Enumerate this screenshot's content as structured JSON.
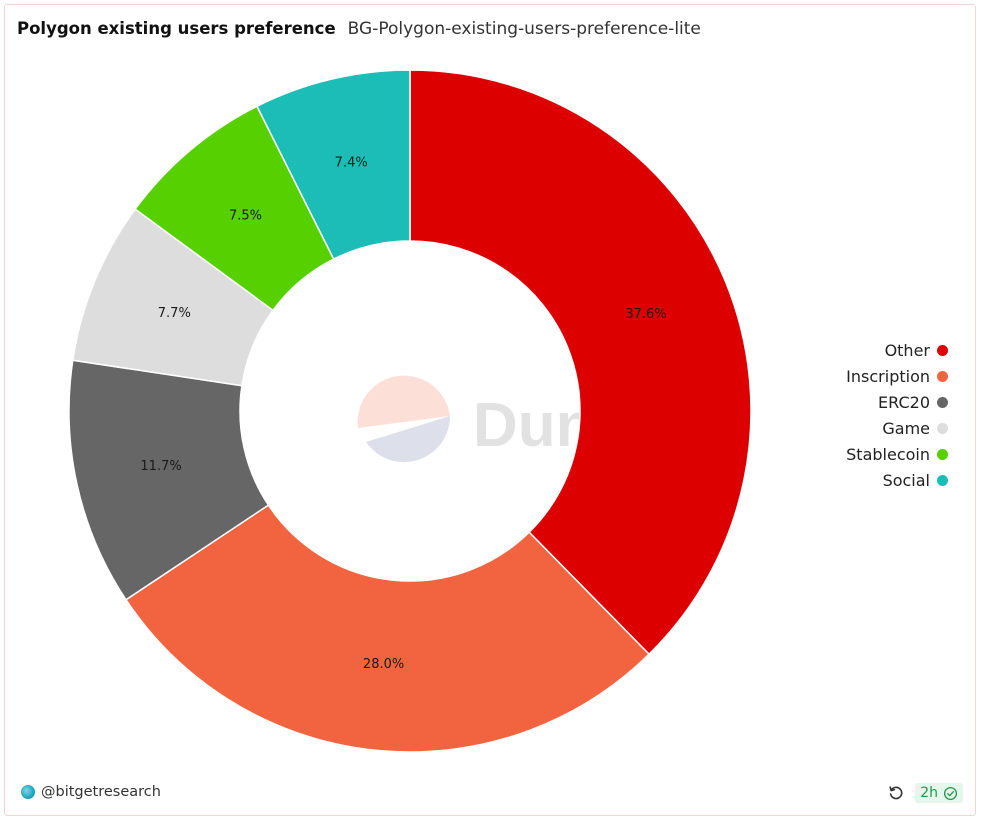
{
  "header": {
    "title": "Polygon existing users preference",
    "subtitle": "BG-Polygon-existing-users-preference-lite"
  },
  "chart_data": {
    "type": "pie",
    "donut": true,
    "title": "Polygon existing users preference",
    "legend_position": "right",
    "slices": [
      {
        "label": "Other",
        "value": 37.6,
        "display": "37.6%",
        "color": "#dd0000"
      },
      {
        "label": "Inscription",
        "value": 28.0,
        "display": "28.0%",
        "color": "#f26440"
      },
      {
        "label": "ERC20",
        "value": 11.7,
        "display": "11.7%",
        "color": "#666666"
      },
      {
        "label": "Game",
        "value": 7.7,
        "display": "7.7%",
        "color": "#dddddd"
      },
      {
        "label": "Stablecoin",
        "value": 7.5,
        "display": "7.5%",
        "color": "#57d000"
      },
      {
        "label": "Social",
        "value": 7.4,
        "display": "7.4%",
        "color": "#1bbdb6"
      }
    ]
  },
  "watermark": {
    "text": "Dune",
    "icon": "dune-logo-icon"
  },
  "footer": {
    "author": "@bitgetresearch",
    "refresh_icon": "refresh-icon",
    "age": "2h",
    "status_icon": "check-circle-icon",
    "status_color": "#1d9a4a"
  }
}
